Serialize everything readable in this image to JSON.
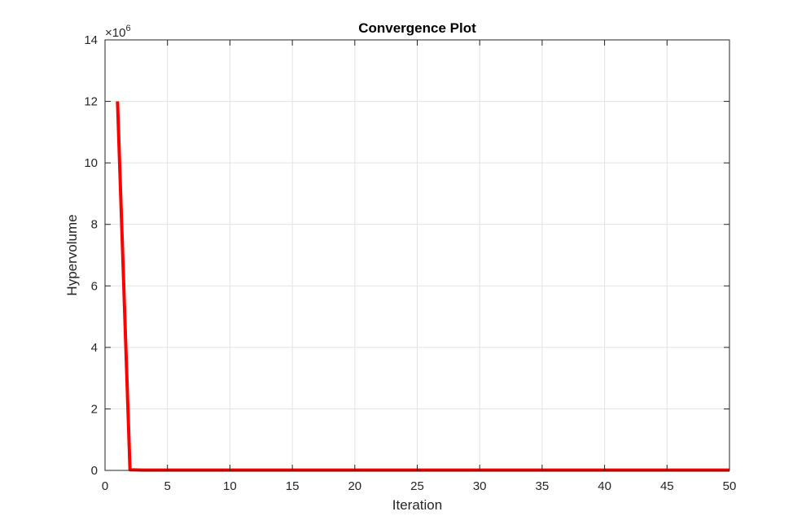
{
  "chart_data": {
    "type": "line",
    "title": "Convergence Plot",
    "xlabel": "Iteration",
    "ylabel": "Hypervolume",
    "exponent_base": "×10",
    "exponent_power": "6",
    "xlim": [
      0,
      50
    ],
    "ylim": [
      0,
      14
    ],
    "xticks": [
      0,
      5,
      10,
      15,
      20,
      25,
      30,
      35,
      40,
      45,
      50
    ],
    "yticks": [
      0,
      2,
      4,
      6,
      8,
      10,
      12,
      14
    ],
    "y_scale_factor": 1000000,
    "grid": true,
    "series": [
      {
        "color": "#ff0000",
        "x": [
          1,
          2,
          3,
          4,
          5,
          6,
          7,
          8,
          9,
          10,
          11,
          12,
          13,
          14,
          15,
          16,
          17,
          18,
          19,
          20,
          21,
          22,
          23,
          24,
          25,
          26,
          27,
          28,
          29,
          30,
          31,
          32,
          33,
          34,
          35,
          36,
          37,
          38,
          39,
          40,
          41,
          42,
          43,
          44,
          45,
          46,
          47,
          48,
          49,
          50
        ],
        "y": [
          12,
          0.02,
          0.01,
          0.01,
          0.01,
          0.01,
          0.01,
          0.01,
          0.01,
          0.01,
          0.01,
          0.01,
          0.01,
          0.01,
          0.01,
          0.01,
          0.01,
          0.01,
          0.01,
          0.01,
          0.01,
          0.01,
          0.01,
          0.01,
          0.01,
          0.01,
          0.01,
          0.01,
          0.01,
          0.01,
          0.01,
          0.01,
          0.01,
          0.01,
          0.01,
          0.01,
          0.01,
          0.01,
          0.01,
          0.01,
          0.01,
          0.01,
          0.01,
          0.01,
          0.01,
          0.01,
          0.01,
          0.01,
          0.01,
          0.01
        ]
      }
    ]
  }
}
